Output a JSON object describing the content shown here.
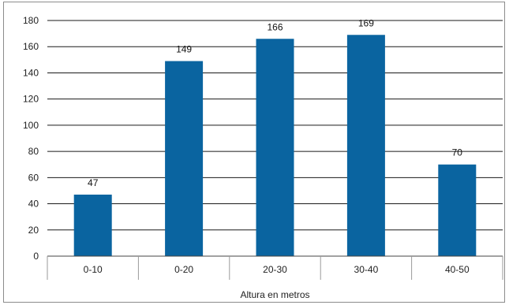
{
  "chart_data": {
    "type": "bar",
    "categories": [
      "0-10",
      "0-20",
      "20-30",
      "30-40",
      "40-50"
    ],
    "values": [
      47,
      149,
      166,
      169,
      70
    ],
    "data_labels": [
      "47",
      "149",
      "166",
      "169",
      "70"
    ],
    "title": "",
    "xlabel": "Altura en metros",
    "ylabel": "",
    "ylim": [
      0,
      180
    ],
    "yticks": [
      0,
      20,
      40,
      60,
      80,
      100,
      120,
      140,
      160,
      180
    ],
    "grid": true,
    "legend": "none",
    "bar_color": "#0a64a0",
    "grid_color": "#1a1a1a"
  }
}
